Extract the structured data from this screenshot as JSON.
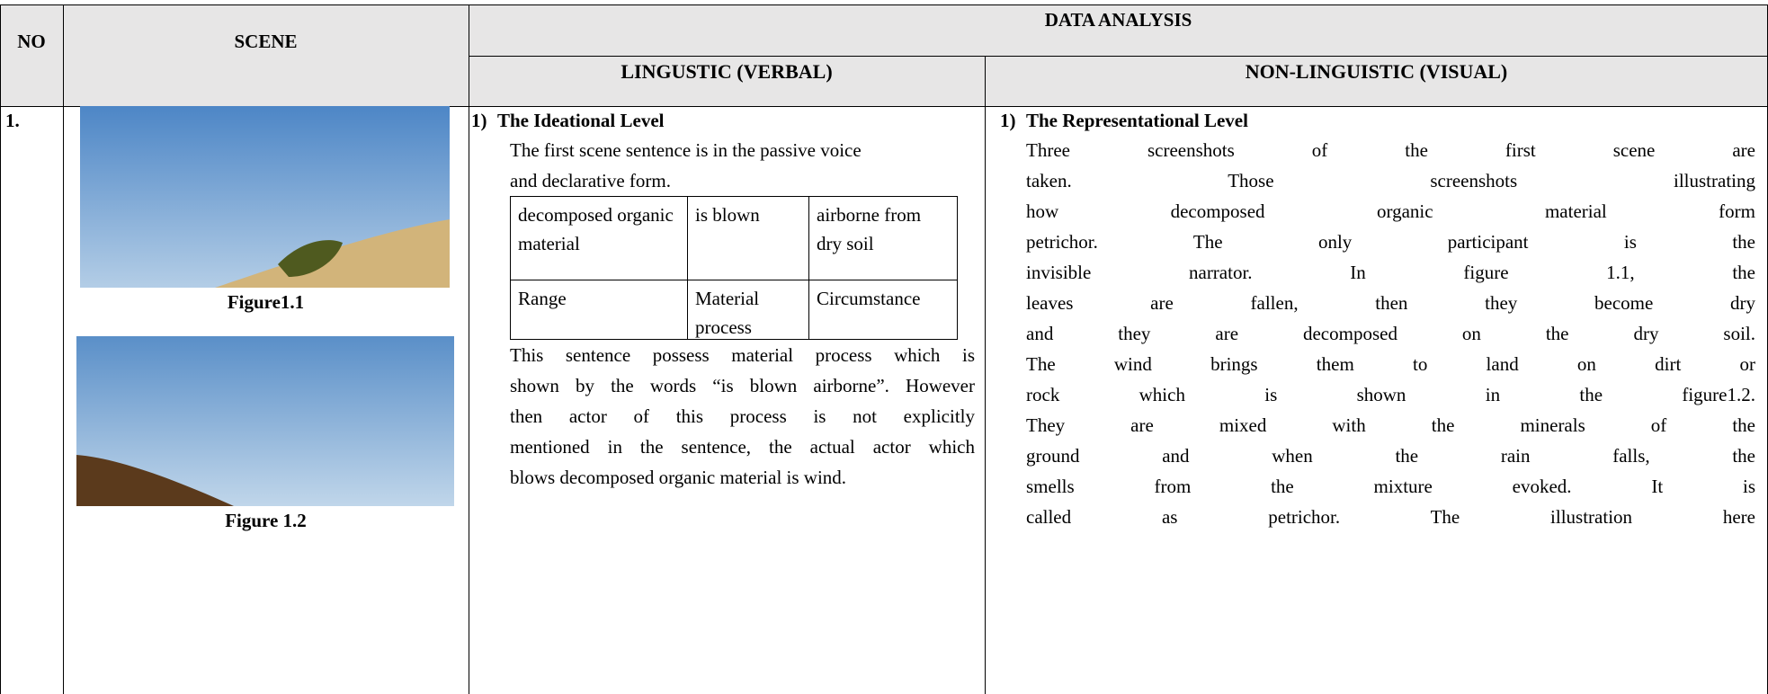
{
  "table": {
    "headers": {
      "no": "NO",
      "scene": "SCENE",
      "data_analysis": "DATA ANALYSIS",
      "linguistic": "LINGUSTIC (VERBAL)",
      "non_linguistic": "NON-LINGUISTIC (VISUAL)"
    },
    "rows": [
      {
        "no": "1.",
        "figures": [
          "Figure1.1",
          "Figure 1.2"
        ],
        "linguistic": {
          "heading_number": "1)",
          "heading": "The Ideational Level",
          "intro": [
            "The first scene sentence is in the passive voice",
            "and declarative form."
          ],
          "analysis_table": [
            [
              "decomposed organic material",
              "is blown",
              "airborne from dry soil"
            ],
            [
              "Range",
              "Material process",
              "Circumstance"
            ]
          ],
          "body": [
            "This sentence possess material process which is",
            "shown by the words “is blown airborne”. However",
            "then actor of this process is not explicitly",
            "mentioned in the sentence, the actual actor which",
            "blows decomposed organic material is wind."
          ]
        },
        "non_linguistic": {
          "heading_number": "1)",
          "heading": "The Representational Level",
          "body": [
            "Three screenshots of the first scene are",
            "taken. Those screenshots illustrating",
            "how decomposed organic material form",
            "petrichor. The only participant is the",
            "invisible narrator. In figure 1.1, the",
            "leaves are fallen, then they become dry",
            "and they are decomposed on the dry soil.",
            "The wind brings them to land on dirt or",
            "rock which is shown in the figure1.2.",
            "They are mixed with the minerals of the",
            "ground and when the rain falls, the",
            "smells from the mixture evoked. It is",
            "called as petrichor. The illustration here"
          ]
        }
      }
    ]
  }
}
